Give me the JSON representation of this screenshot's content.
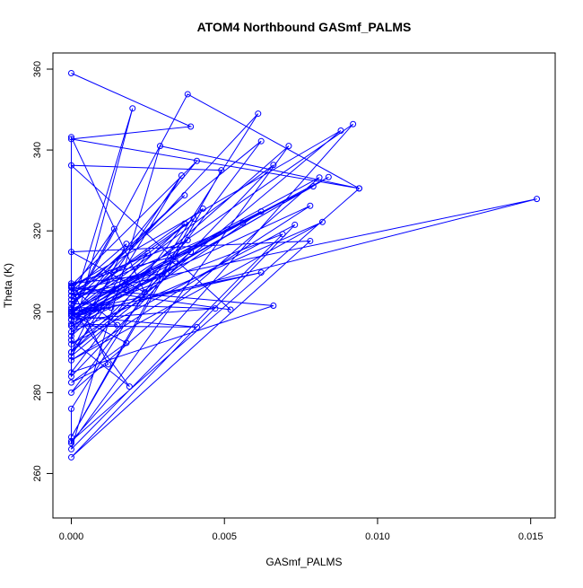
{
  "chart_data": {
    "type": "scatter",
    "title": "ATOM4 Northbound GASmf_PALMS",
    "xlabel": "GASmf_PALMS",
    "ylabel": "Theta (K)",
    "xlim": [
      -0.0006,
      0.0158
    ],
    "ylim": [
      249,
      364
    ],
    "x_ticks": [
      0.0,
      0.005,
      0.01,
      0.015
    ],
    "x_tick_labels": [
      "0.000",
      "0.005",
      "0.010",
      "0.015"
    ],
    "y_ticks": [
      260,
      280,
      300,
      320,
      340,
      360
    ],
    "y_tick_labels": [
      "260",
      "280",
      "300",
      "320",
      "340",
      "360"
    ],
    "grid": false,
    "legend": "none",
    "series": [
      {
        "color": "#0000ff",
        "marker": "open-circle",
        "line": true,
        "points": [
          [
            0.0,
            359.0
          ],
          [
            0.0039,
            345.8
          ],
          [
            0.0,
            342.7
          ],
          [
            0.0094,
            330.5
          ],
          [
            0.0,
            268.0
          ],
          [
            0.0092,
            346.4
          ],
          [
            0.0002,
            299.0
          ],
          [
            0.0152,
            327.9
          ],
          [
            0.0,
            304.0
          ],
          [
            0.0062,
            342.2
          ],
          [
            0.0,
            280.0
          ],
          [
            0.0081,
            333.2
          ],
          [
            0.0,
            300.0
          ],
          [
            0.0084,
            333.3
          ],
          [
            0.0,
            296.5
          ],
          [
            0.0,
            306.2
          ],
          [
            0.0088,
            344.8
          ],
          [
            0.0,
            289.0
          ],
          [
            0.0036,
            333.7
          ],
          [
            0.0,
            294.0
          ],
          [
            0.0071,
            341.0
          ],
          [
            0.0,
            267.5
          ],
          [
            0.0,
            276.0
          ],
          [
            0.0061,
            349.0
          ],
          [
            0.0,
            299.5
          ],
          [
            0.0066,
            336.3
          ],
          [
            0.0,
            284.0
          ],
          [
            0.0,
            343.2
          ],
          [
            0.0024,
            304.8
          ],
          [
            0.0,
            314.8
          ],
          [
            0.0078,
            317.5
          ],
          [
            0.0,
            264.0
          ],
          [
            0.0073,
            321.5
          ],
          [
            0.0,
            292.0
          ],
          [
            0.0062,
            324.8
          ],
          [
            0.0,
            300.5
          ],
          [
            0.0014,
            320.5
          ],
          [
            0.0,
            305.0
          ],
          [
            0.0018,
            316.8
          ],
          [
            0.0,
            290.0
          ],
          [
            0.0039,
            314.8
          ],
          [
            0.0,
            307.0
          ],
          [
            0.0031,
            309.5
          ],
          [
            0.0,
            298.0
          ],
          [
            0.0047,
            300.8
          ],
          [
            0.0,
            302.0
          ],
          [
            0.0043,
            325.5
          ],
          [
            0.0,
            269.0
          ],
          [
            0.0049,
            335.0
          ],
          [
            0.0,
            336.2
          ],
          [
            0.0052,
            300.5
          ],
          [
            0.0,
            306.0
          ],
          [
            0.0066,
            301.5
          ],
          [
            0.0,
            285.0
          ],
          [
            0.0037,
            321.8
          ],
          [
            0.0,
            295.0
          ],
          [
            0.0082,
            322.2
          ],
          [
            0.0,
            288.0
          ],
          [
            0.0078,
            326.2
          ],
          [
            0.0,
            299.0
          ],
          [
            0.0069,
            319.2
          ],
          [
            0.0,
            266.0
          ],
          [
            0.0029,
            341.0
          ],
          [
            0.0094,
            330.5
          ],
          [
            0.0038,
            353.8
          ],
          [
            0.0,
            300.0
          ],
          [
            0.002,
            350.3
          ],
          [
            0.0,
            293.0
          ],
          [
            0.0019,
            281.5
          ],
          [
            0.0,
            301.0
          ],
          [
            0.0013,
            301.0
          ],
          [
            0.0,
            296.5
          ],
          [
            0.0041,
            296.2
          ],
          [
            0.0,
            299.0
          ],
          [
            0.0009,
            300.8
          ],
          [
            0.0,
            299.5
          ],
          [
            0.0018,
            292.3
          ],
          [
            0.0,
            282.5
          ],
          [
            0.0012,
            287.0
          ],
          [
            0.0,
            306.0
          ],
          [
            0.0015,
            296.7
          ],
          [
            0.0,
            297.0
          ],
          [
            0.0079,
            331.0
          ],
          [
            0.0,
            300.0
          ],
          [
            0.004,
            323.0
          ],
          [
            0.0,
            302.0
          ],
          [
            0.0037,
            328.8
          ],
          [
            0.0,
            303.0
          ],
          [
            0.0034,
            312.5
          ],
          [
            0.0,
            298.0
          ],
          [
            0.0018,
            305.5
          ],
          [
            0.0,
            304.0
          ],
          [
            0.0056,
            322.0
          ],
          [
            0.0,
            299.0
          ],
          [
            0.0041,
            337.3
          ],
          [
            0.0,
            306.5
          ],
          [
            0.0038,
            317.7
          ],
          [
            0.0,
            290.0
          ],
          [
            0.0025,
            314.5
          ],
          [
            0.0,
            305.0
          ],
          [
            0.0026,
            310.0
          ],
          [
            0.0,
            299.0
          ],
          [
            0.0062,
            309.7
          ],
          [
            0.0,
            300.0
          ]
        ]
      }
    ]
  }
}
